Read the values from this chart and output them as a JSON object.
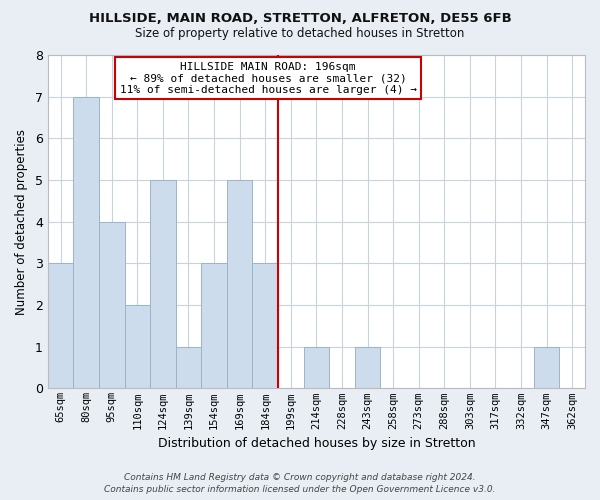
{
  "title": "HILLSIDE, MAIN ROAD, STRETTON, ALFRETON, DE55 6FB",
  "subtitle": "Size of property relative to detached houses in Stretton",
  "xlabel": "Distribution of detached houses by size in Stretton",
  "ylabel": "Number of detached properties",
  "bar_color": "#ccdcec",
  "bar_edge_color": "#9ab4cc",
  "categories": [
    "65sqm",
    "80sqm",
    "95sqm",
    "110sqm",
    "124sqm",
    "139sqm",
    "154sqm",
    "169sqm",
    "184sqm",
    "199sqm",
    "214sqm",
    "228sqm",
    "243sqm",
    "258sqm",
    "273sqm",
    "288sqm",
    "303sqm",
    "317sqm",
    "332sqm",
    "347sqm",
    "362sqm"
  ],
  "values": [
    3,
    7,
    4,
    2,
    5,
    1,
    3,
    5,
    3,
    0,
    1,
    0,
    1,
    0,
    0,
    0,
    0,
    0,
    0,
    1,
    0
  ],
  "ylim": [
    0,
    8
  ],
  "yticks": [
    0,
    1,
    2,
    3,
    4,
    5,
    6,
    7,
    8
  ],
  "property_line_color": "#cc0000",
  "annotation_title": "HILLSIDE MAIN ROAD: 196sqm",
  "annotation_line1": "← 89% of detached houses are smaller (32)",
  "annotation_line2": "11% of semi-detached houses are larger (4) →",
  "annotation_box_color": "#ffffff",
  "annotation_box_edge": "#cc0000",
  "footnote1": "Contains HM Land Registry data © Crown copyright and database right 2024.",
  "footnote2": "Contains public sector information licensed under the Open Government Licence v3.0.",
  "bg_color": "#e8eef4",
  "plot_bg_color": "#ffffff",
  "grid_color": "#c8d4dc"
}
